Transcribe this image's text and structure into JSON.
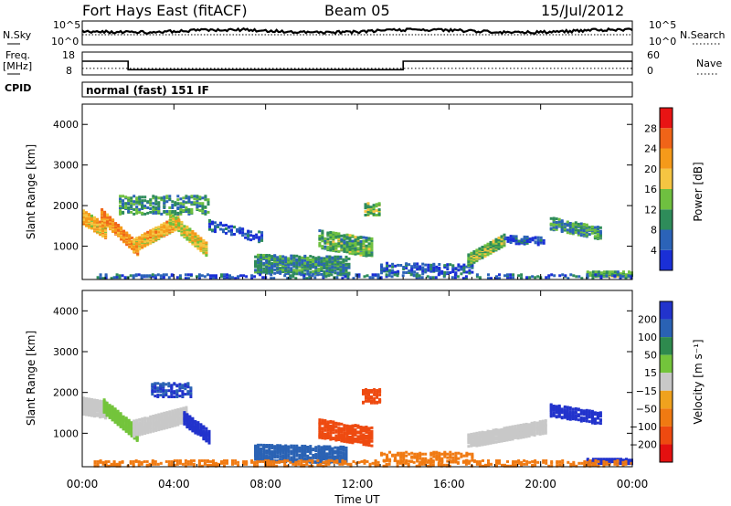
{
  "header": {
    "station": "Fort Hays East (fitACF)",
    "beam": "Beam 05",
    "date": "15/Jul/2012"
  },
  "noise_panel": {
    "left_label": "N.Sky",
    "right_label": "N.Search",
    "left_ticks": [
      "10^5",
      "10^0"
    ],
    "right_ticks": [
      "10^5",
      "10^0"
    ]
  },
  "freq_panel": {
    "left_label_1": "Freq.",
    "left_label_2": "[MHz]",
    "right_label": "Nave",
    "left_ticks": [
      "18",
      "8"
    ],
    "right_ticks": [
      "60",
      "0"
    ],
    "freq_steps": [
      {
        "from_hour": 0,
        "to_hour": 2.0,
        "value": 14.0
      },
      {
        "from_hour": 2.0,
        "to_hour": 14.0,
        "value": 10.3
      },
      {
        "from_hour": 14.0,
        "to_hour": 24.0,
        "value": 14.0
      }
    ],
    "nave_level": 17
  },
  "cpid": {
    "label": "CPID",
    "program": "normal (fast) 151 IF"
  },
  "x_axis": {
    "label": "Time UT",
    "ticks": [
      "00:00",
      "04:00",
      "08:00",
      "12:00",
      "16:00",
      "20:00",
      "00:00"
    ],
    "range_hours": [
      0,
      24
    ]
  },
  "power_panel": {
    "y_label": "Slant Range [km]",
    "y_ticks": [
      "1000",
      "2000",
      "3000",
      "4000"
    ],
    "colorbar_label": "Power [dB]",
    "colorbar_ticks": [
      "4",
      "8",
      "12",
      "16",
      "20",
      "24",
      "28"
    ]
  },
  "velocity_panel": {
    "y_label": "Slant Range [km]",
    "y_ticks": [
      "1000",
      "2000",
      "3000",
      "4000"
    ],
    "colorbar_label": "Velocity [m s⁻¹]",
    "colorbar_ticks": [
      "200",
      "100",
      "50",
      "15",
      "−15",
      "−50",
      "−100",
      "−200"
    ]
  },
  "colors": {
    "power_scale": [
      "#1a2fd6",
      "#2b63b8",
      "#2e8c5a",
      "#6fc040",
      "#f5c542",
      "#f59a1a",
      "#f06418",
      "#e81414"
    ],
    "velocity_scale": [
      "#2233cc",
      "#2a62b4",
      "#2e8a4e",
      "#73c43b",
      "#c8c8c8",
      "#f0a21e",
      "#f07a12",
      "#ee4a10",
      "#e41010"
    ]
  },
  "chart_data": {
    "type": "heatmap",
    "x_units": "hours UT",
    "y_units": "km",
    "xlim": [
      0,
      24
    ],
    "ylim": [
      180,
      4500
    ],
    "power_structures": [
      {
        "t0": 0.0,
        "t1": 1.0,
        "r0": 1750,
        "r1": 1400,
        "w": 350,
        "v": 22,
        "density": 0.95
      },
      {
        "t0": 0.8,
        "t1": 2.4,
        "r0": 1800,
        "r1": 950,
        "w": 300,
        "v": 25,
        "density": 0.9
      },
      {
        "t0": 2.2,
        "t1": 4.2,
        "r0": 1050,
        "r1": 1650,
        "w": 320,
        "v": 22,
        "density": 0.9
      },
      {
        "t0": 3.8,
        "t1": 5.4,
        "r0": 1700,
        "r1": 950,
        "w": 320,
        "v": 20,
        "density": 0.85
      },
      {
        "t0": 1.6,
        "t1": 5.5,
        "r0": 2050,
        "r1": 2050,
        "w": 450,
        "v": 12,
        "density": 0.35
      },
      {
        "t0": 5.5,
        "t1": 7.8,
        "r0": 1550,
        "r1": 1250,
        "w": 250,
        "v": 6,
        "density": 0.3
      },
      {
        "t0": 7.5,
        "t1": 11.6,
        "r0": 600,
        "r1": 550,
        "w": 450,
        "v": 11,
        "density": 0.6
      },
      {
        "t0": 10.3,
        "t1": 12.6,
        "r0": 1200,
        "r1": 1000,
        "w": 450,
        "v": 14,
        "density": 0.55
      },
      {
        "t0": 12.3,
        "t1": 13.0,
        "r0": 1950,
        "r1": 1950,
        "w": 300,
        "v": 15,
        "density": 0.5
      },
      {
        "t0": 13.0,
        "t1": 17.0,
        "r0": 500,
        "r1": 450,
        "w": 250,
        "v": 7,
        "density": 0.35
      },
      {
        "t0": 16.8,
        "t1": 18.4,
        "r0": 700,
        "r1": 1200,
        "w": 280,
        "v": 15,
        "density": 0.8
      },
      {
        "t0": 18.4,
        "t1": 20.2,
        "r0": 1200,
        "r1": 1150,
        "w": 180,
        "v": 6,
        "density": 0.5
      },
      {
        "t0": 20.4,
        "t1": 22.6,
        "r0": 1600,
        "r1": 1350,
        "w": 300,
        "v": 12,
        "density": 0.6
      },
      {
        "t0": 22.0,
        "t1": 24.0,
        "r0": 350,
        "r1": 350,
        "w": 120,
        "v": 14,
        "density": 0.7
      },
      {
        "t0": 0.5,
        "t1": 24.0,
        "r0": 280,
        "r1": 280,
        "w": 120,
        "v": 8,
        "density": 0.25
      }
    ],
    "velocity_structures": [
      {
        "t0": 0.0,
        "t1": 1.0,
        "r0": 1700,
        "r1": 1600,
        "w": 400,
        "v": 0,
        "density": 0.9
      },
      {
        "t0": 0.9,
        "t1": 2.4,
        "r0": 1700,
        "r1": 1000,
        "w": 350,
        "v": 25,
        "density": 0.9
      },
      {
        "t0": 2.2,
        "t1": 4.6,
        "r0": 1150,
        "r1": 1500,
        "w": 380,
        "v": 0,
        "density": 0.9
      },
      {
        "t0": 4.4,
        "t1": 5.5,
        "r0": 1400,
        "r1": 950,
        "w": 330,
        "v": 180,
        "density": 0.8
      },
      {
        "t0": 3.0,
        "t1": 4.8,
        "r0": 2100,
        "r1": 2100,
        "w": 350,
        "v": 150,
        "density": 0.45
      },
      {
        "t0": 7.5,
        "t1": 11.5,
        "r0": 550,
        "r1": 500,
        "w": 400,
        "v": 120,
        "density": 0.6
      },
      {
        "t0": 10.3,
        "t1": 12.6,
        "r0": 1150,
        "r1": 950,
        "w": 450,
        "v": -190,
        "density": 0.6
      },
      {
        "t0": 12.2,
        "t1": 13.0,
        "r0": 1950,
        "r1": 1950,
        "w": 350,
        "v": -190,
        "density": 0.5
      },
      {
        "t0": 13.0,
        "t1": 17.0,
        "r0": 450,
        "r1": 450,
        "w": 250,
        "v": -60,
        "density": 0.35
      },
      {
        "t0": 16.8,
        "t1": 20.2,
        "r0": 850,
        "r1": 1200,
        "w": 320,
        "v": 0,
        "density": 0.85
      },
      {
        "t0": 20.4,
        "t1": 22.6,
        "r0": 1600,
        "r1": 1400,
        "w": 300,
        "v": 200,
        "density": 0.6
      },
      {
        "t0": 22.0,
        "t1": 24.0,
        "r0": 350,
        "r1": 350,
        "w": 120,
        "v": 200,
        "density": 0.8
      },
      {
        "t0": 0.5,
        "t1": 24.0,
        "r0": 300,
        "r1": 300,
        "w": 140,
        "v": -60,
        "density": 0.3
      }
    ]
  }
}
